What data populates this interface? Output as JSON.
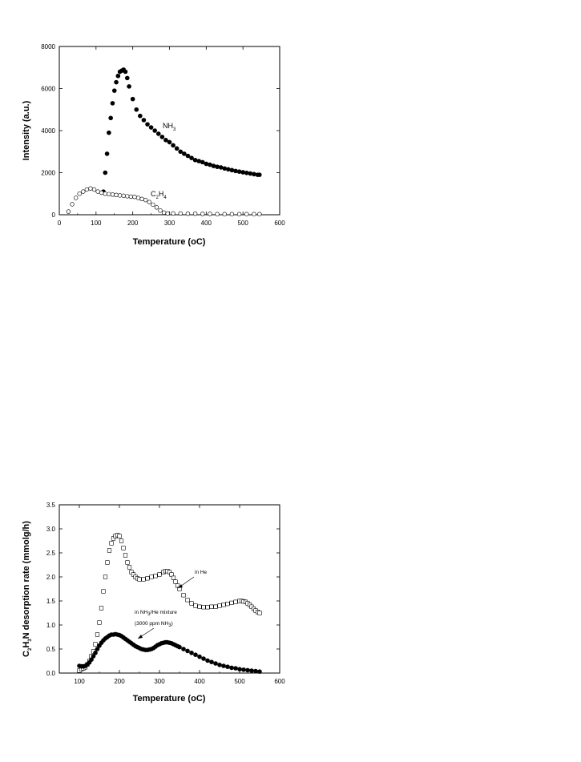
{
  "chart_data": [
    {
      "type": "scatter",
      "title": "",
      "xlabel": "Temperature (oC)",
      "ylabel": "Intensity (a.u.)",
      "xlim": [
        0,
        600
      ],
      "ylim": [
        0,
        8000
      ],
      "xticks": [
        "0",
        "100",
        "200",
        "300",
        "400",
        "500",
        "600"
      ],
      "yticks": [
        "0",
        "2000",
        "4000",
        "6000",
        "8000"
      ],
      "annotations": [
        {
          "text": "NH",
          "sub": "3"
        },
        {
          "text": "C",
          "sub": "2",
          "text2": "H",
          "sub2": "4"
        }
      ],
      "series": [
        {
          "name": "NH3",
          "marker": "filled-circle",
          "x": [
            120,
            125,
            130,
            135,
            140,
            145,
            150,
            155,
            160,
            165,
            170,
            175,
            180,
            185,
            190,
            200,
            210,
            220,
            230,
            240,
            250,
            260,
            270,
            280,
            290,
            300,
            310,
            320,
            330,
            340,
            350,
            360,
            370,
            380,
            390,
            400,
            410,
            420,
            430,
            440,
            450,
            460,
            470,
            480,
            490,
            500,
            510,
            520,
            530,
            540,
            545
          ],
          "y": [
            1100,
            2000,
            2900,
            3900,
            4600,
            5300,
            5900,
            6300,
            6600,
            6800,
            6850,
            6900,
            6800,
            6500,
            6100,
            5500,
            5000,
            4700,
            4500,
            4300,
            4150,
            4000,
            3850,
            3700,
            3550,
            3450,
            3300,
            3150,
            3000,
            2900,
            2800,
            2700,
            2600,
            2550,
            2500,
            2420,
            2380,
            2320,
            2280,
            2250,
            2200,
            2160,
            2120,
            2080,
            2050,
            2020,
            1990,
            1960,
            1930,
            1900,
            1900
          ]
        },
        {
          "name": "C2H4",
          "marker": "open-circle",
          "x": [
            25,
            35,
            45,
            55,
            65,
            75,
            85,
            95,
            105,
            115,
            125,
            135,
            145,
            155,
            165,
            175,
            185,
            195,
            205,
            215,
            225,
            235,
            245,
            255,
            265,
            275,
            285,
            295,
            310,
            330,
            350,
            370,
            390,
            410,
            430,
            450,
            470,
            490,
            510,
            530,
            545
          ],
          "y": [
            150,
            500,
            800,
            1000,
            1100,
            1200,
            1250,
            1200,
            1100,
            1050,
            1000,
            980,
            960,
            940,
            920,
            900,
            880,
            860,
            850,
            800,
            750,
            700,
            600,
            480,
            350,
            200,
            100,
            60,
            60,
            60,
            50,
            50,
            40,
            40,
            30,
            30,
            30,
            30,
            30,
            30,
            30
          ]
        }
      ]
    },
    {
      "type": "scatter",
      "title": "",
      "xlabel": "Temperature (oC)",
      "ylabel": "C2H3N desorption rate (mmolg/h)",
      "xlim": [
        0,
        600
      ],
      "xdata_range": [
        50,
        600
      ],
      "ylim": [
        0.0,
        3.5
      ],
      "xticks": [
        "100",
        "200",
        "300",
        "400",
        "500",
        "600"
      ],
      "yticks": [
        "0.0",
        "0.5",
        "1.0",
        "1.5",
        "2.0",
        "2.5",
        "3.0",
        "3.5"
      ],
      "ylabel_parts": {
        "a": "C",
        "a_sub": "2",
        "b": "H",
        "b_sub": "3",
        "c": "N desorption rate (mmolg/h)"
      },
      "annotations": [
        {
          "text": "in He"
        },
        {
          "text": "in NH",
          "sub": "3",
          "text2": "/He mixture"
        },
        {
          "text": "(3000 ppm NH",
          "sub": "3",
          "text2": ")"
        }
      ],
      "series": [
        {
          "name": "in He",
          "marker": "open-square",
          "x": [
            100,
            105,
            110,
            115,
            120,
            125,
            130,
            135,
            140,
            145,
            150,
            155,
            160,
            165,
            170,
            175,
            180,
            185,
            190,
            195,
            200,
            205,
            210,
            215,
            220,
            225,
            230,
            235,
            240,
            245,
            250,
            260,
            270,
            280,
            290,
            300,
            310,
            315,
            320,
            325,
            330,
            335,
            340,
            345,
            350,
            360,
            370,
            380,
            390,
            400,
            410,
            420,
            430,
            440,
            450,
            460,
            470,
            480,
            490,
            500,
            505,
            510,
            515,
            520,
            525,
            530,
            535,
            540,
            545,
            550
          ],
          "y": [
            0.05,
            0.08,
            0.1,
            0.12,
            0.18,
            0.25,
            0.35,
            0.45,
            0.6,
            0.8,
            1.05,
            1.35,
            1.7,
            2.0,
            2.3,
            2.55,
            2.7,
            2.8,
            2.85,
            2.87,
            2.85,
            2.75,
            2.6,
            2.45,
            2.3,
            2.2,
            2.1,
            2.05,
            2.0,
            1.97,
            1.95,
            1.95,
            1.97,
            2.0,
            2.02,
            2.05,
            2.1,
            2.12,
            2.12,
            2.1,
            2.05,
            1.98,
            1.9,
            1.82,
            1.75,
            1.62,
            1.52,
            1.45,
            1.4,
            1.38,
            1.37,
            1.37,
            1.38,
            1.38,
            1.4,
            1.42,
            1.44,
            1.46,
            1.48,
            1.5,
            1.5,
            1.49,
            1.48,
            1.45,
            1.42,
            1.38,
            1.34,
            1.3,
            1.27,
            1.25
          ]
        },
        {
          "name": "in NH3/He mixture (3000 ppm NH3)",
          "marker": "filled-circle",
          "x": [
            100,
            105,
            110,
            115,
            120,
            125,
            130,
            135,
            140,
            145,
            150,
            155,
            160,
            165,
            170,
            175,
            180,
            185,
            190,
            195,
            200,
            205,
            210,
            215,
            220,
            225,
            230,
            235,
            240,
            245,
            250,
            255,
            260,
            265,
            270,
            275,
            280,
            285,
            290,
            295,
            300,
            305,
            310,
            315,
            320,
            325,
            330,
            335,
            340,
            345,
            350,
            360,
            370,
            380,
            390,
            400,
            410,
            420,
            430,
            440,
            450,
            460,
            470,
            480,
            490,
            500,
            510,
            520,
            530,
            540,
            550
          ],
          "y": [
            0.15,
            0.14,
            0.14,
            0.15,
            0.18,
            0.22,
            0.28,
            0.35,
            0.42,
            0.5,
            0.57,
            0.63,
            0.68,
            0.72,
            0.75,
            0.78,
            0.8,
            0.8,
            0.81,
            0.8,
            0.79,
            0.77,
            0.74,
            0.71,
            0.68,
            0.65,
            0.62,
            0.59,
            0.56,
            0.54,
            0.52,
            0.5,
            0.49,
            0.48,
            0.48,
            0.49,
            0.5,
            0.52,
            0.55,
            0.58,
            0.6,
            0.62,
            0.63,
            0.64,
            0.64,
            0.63,
            0.62,
            0.6,
            0.58,
            0.56,
            0.54,
            0.5,
            0.46,
            0.42,
            0.38,
            0.34,
            0.3,
            0.26,
            0.23,
            0.2,
            0.17,
            0.15,
            0.13,
            0.11,
            0.1,
            0.08,
            0.07,
            0.06,
            0.05,
            0.04,
            0.03
          ]
        }
      ]
    }
  ]
}
